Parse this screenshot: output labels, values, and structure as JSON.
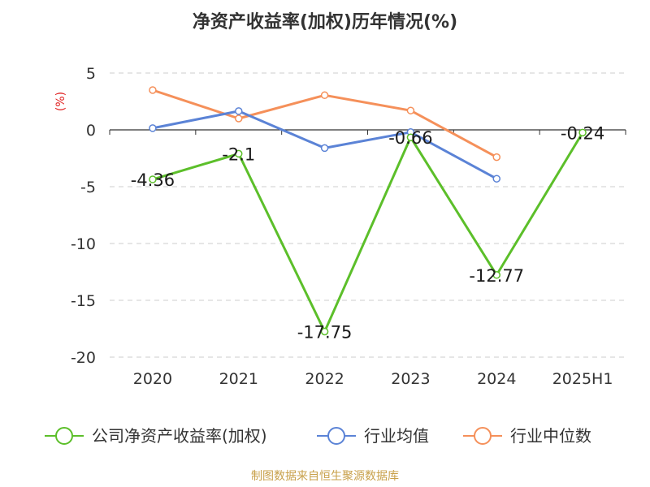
{
  "chart_data": {
    "type": "line",
    "title": "净资产收益率(加权)历年情况(%)",
    "ylabel": "(%)",
    "categories": [
      "2020",
      "2021",
      "2022",
      "2023",
      "2024",
      "2025H1"
    ],
    "ylim": [
      -20,
      5
    ],
    "yticks": [
      5,
      0,
      -5,
      -10,
      -15,
      -20
    ],
    "grid": "horizontal dashed",
    "legend_position": "bottom",
    "series": [
      {
        "name": "公司净资产收益率(加权)",
        "color": "#5cbf2a",
        "values": [
          -4.36,
          -2.1,
          -17.75,
          -0.66,
          -12.77,
          -0.24
        ],
        "data_labels": [
          "-4.36",
          "-2.1",
          "-17.75",
          "-0.66",
          "-12.77",
          "-0.24"
        ]
      },
      {
        "name": "行业均值",
        "color": "#5b83d6",
        "values": [
          0.15,
          1.65,
          -1.6,
          -0.2,
          -4.3,
          null
        ]
      },
      {
        "name": "行业中位数",
        "color": "#f5905a",
        "values": [
          3.5,
          1.0,
          3.05,
          1.7,
          -2.4,
          null
        ]
      }
    ]
  },
  "footer": "制图数据来自恒生聚源数据库"
}
